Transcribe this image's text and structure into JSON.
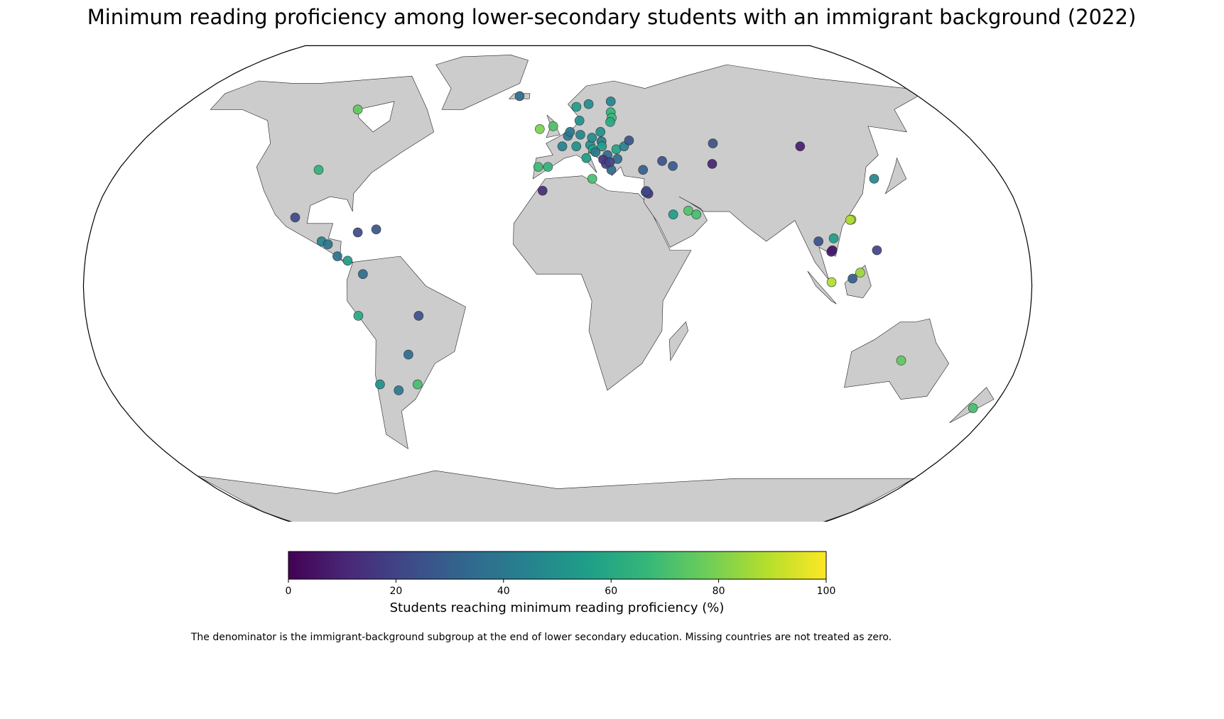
{
  "chart_data": {
    "type": "map",
    "projection": "robinson",
    "title": "Minimum reading proficiency among lower-secondary students with an immigrant background (2022)",
    "lon": [
      -95,
      -98,
      -102,
      -90.5,
      -88,
      -84,
      -80,
      -70,
      -77,
      -74,
      -76,
      -53,
      -58,
      -71,
      -64,
      -56,
      -19,
      -8,
      -2,
      -4,
      -8,
      -6,
      14,
      2,
      4.5,
      5.5,
      10,
      8,
      12,
      14,
      15,
      10,
      9,
      15,
      26,
      25,
      25,
      24,
      19,
      19,
      19,
      15,
      16,
      21,
      25,
      28.5,
      31,
      25,
      22,
      20,
      19,
      21.7,
      35,
      43.5,
      47.5,
      67,
      64,
      104,
      35,
      36,
      35.3,
      45,
      51,
      54,
      128,
      114,
      113.5,
      106,
      100,
      105,
      104.5,
      122,
      104,
      115,
      112,
      134,
      172
    ],
    "lat": [
      60,
      39,
      23,
      15,
      14,
      10,
      8.5,
      19,
      18,
      4,
      -10,
      -10,
      -23,
      -33,
      -35,
      -33,
      65,
      53,
      54,
      40,
      40,
      32,
      36,
      47,
      50.6,
      52,
      51,
      47,
      43,
      47.5,
      50,
      56,
      61,
      62,
      63,
      59,
      57,
      55.5,
      52,
      48.7,
      47,
      46,
      45,
      44,
      46,
      47,
      49,
      42.7,
      39,
      41,
      42.5,
      41.6,
      39,
      42,
      40.3,
      48,
      41,
      47,
      31.5,
      31,
      31.9,
      24,
      25.3,
      24,
      36,
      22.3,
      22.2,
      16,
      15,
      12,
      11.5,
      12,
      1.3,
      4.5,
      2.5,
      -25,
      -41
    ],
    "values": [
      75,
      65,
      22,
      45,
      38,
      38,
      55,
      25,
      22,
      35,
      60,
      25,
      35,
      50,
      40,
      70,
      35,
      80,
      72,
      65,
      68,
      12,
      70,
      45,
      40,
      40,
      45,
      50,
      55,
      50,
      48,
      50,
      55,
      48,
      45,
      65,
      68,
      60,
      50,
      42,
      55,
      58,
      40,
      35,
      58,
      45,
      25,
      35,
      35,
      20,
      15,
      20,
      30,
      25,
      28,
      25,
      10,
      8,
      28,
      15,
      22,
      55,
      72,
      70,
      45,
      85,
      88,
      55,
      25,
      5,
      8,
      20,
      88,
      85,
      30,
      75,
      70
    ],
    "colormap": "viridis",
    "colorbar": {
      "label": "Students reaching minimum reading proficiency (%)",
      "lim": [
        0,
        100
      ],
      "ticks": [
        0,
        20,
        40,
        60,
        80,
        100
      ]
    },
    "note": "The denominator is the immigrant-background subgroup at the end of lower secondary education. Missing countries are not treated as zero."
  }
}
